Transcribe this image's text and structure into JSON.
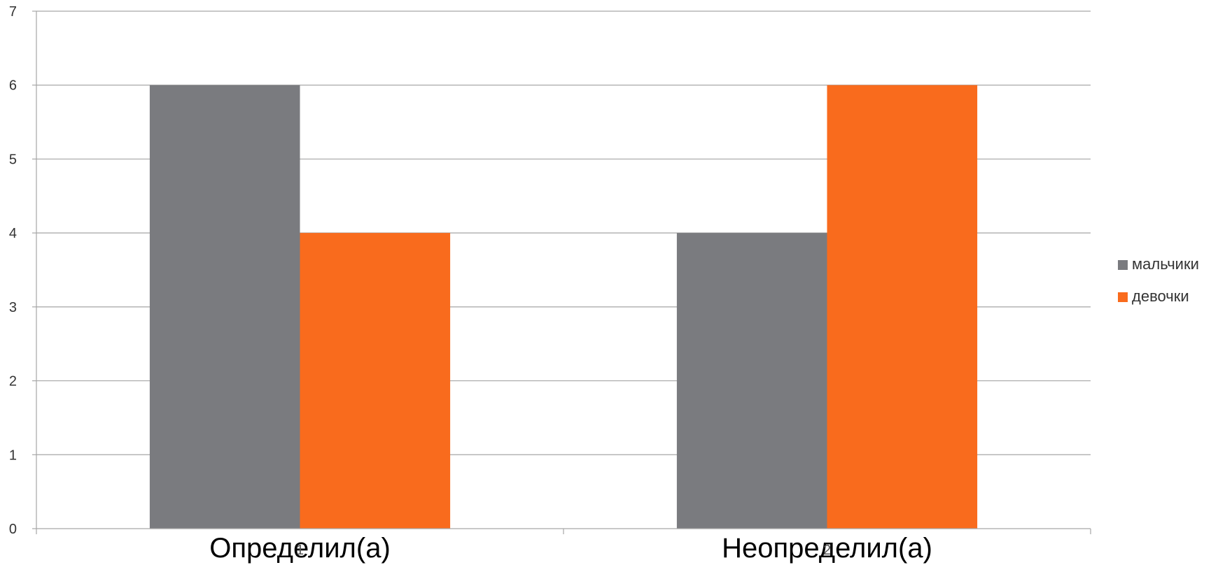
{
  "chart_data": {
    "type": "bar",
    "categories": [
      "1",
      "2"
    ],
    "category_captions": [
      "Определил(а)",
      "Неопределил(а)"
    ],
    "series": [
      {
        "name": "мальчики",
        "values": [
          6,
          4
        ],
        "color": "#7a7b7f"
      },
      {
        "name": "девочки",
        "values": [
          4,
          6
        ],
        "color": "#f96b1d"
      }
    ],
    "title": "",
    "xlabel": "",
    "ylabel": "",
    "ylim": [
      0,
      7
    ],
    "yticks": [
      "0",
      "1",
      "2",
      "3",
      "4",
      "5",
      "6",
      "7"
    ],
    "grid": true,
    "legend": "right"
  }
}
